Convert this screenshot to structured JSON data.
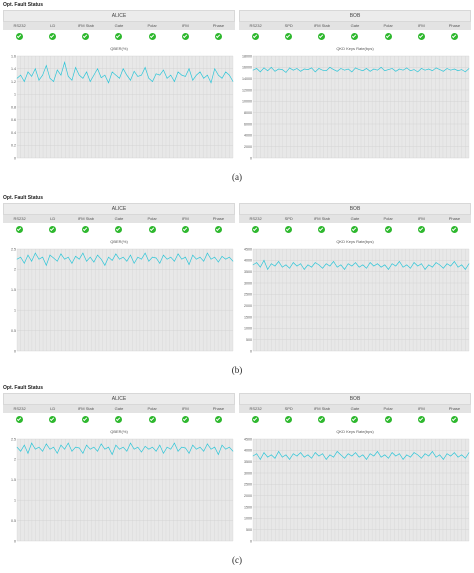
{
  "colors": {
    "series": "#2fc6d8",
    "ok": "#2eb82e",
    "grid_bg": "#e8e8e8"
  },
  "status_icon": "check-circle-icon",
  "panels": [
    {
      "title": "Opt. Fault Status",
      "label": "(a)",
      "alice": {
        "title": "ALICE",
        "columns": [
          "RS232",
          "LD",
          "IFM Stab",
          "Gate",
          "Polar",
          "IFM",
          "Phase"
        ]
      },
      "bob": {
        "title": "BOB",
        "columns": [
          "RS232",
          "SPD",
          "IFM Stab",
          "Gate",
          "Polar",
          "IFM",
          "Phase"
        ]
      }
    },
    {
      "title": "Opt. Fault Status",
      "label": "(b)",
      "alice": {
        "title": "ALICE",
        "columns": [
          "RS232",
          "LD",
          "IFM Stab",
          "Gate",
          "Polar",
          "IFM",
          "Phase"
        ]
      },
      "bob": {
        "title": "BOB",
        "columns": [
          "RS232",
          "SPD",
          "IFM Stab",
          "Gate",
          "Polar",
          "IFM",
          "Phase"
        ]
      }
    },
    {
      "title": "Opt. Fault Status",
      "label": "(c)",
      "alice": {
        "title": "ALICE",
        "columns": [
          "RS232",
          "LD",
          "IFM Stab",
          "Gate",
          "Polar",
          "IFM",
          "Phase"
        ]
      },
      "bob": {
        "title": "BOB",
        "columns": [
          "RS232",
          "SPD",
          "IFM Stab",
          "Gate",
          "Polar",
          "IFM",
          "Phase"
        ]
      }
    }
  ],
  "chart_data": [
    {
      "type": "line",
      "panel": "a",
      "title": "QBER(%)",
      "ylim": [
        0,
        1.6
      ],
      "yticks": [
        "1.6",
        "1.4",
        "1.2",
        "1",
        "0.8",
        "0.6",
        "0.4",
        "0.2",
        "0"
      ],
      "series": [
        {
          "values": [
            1.25,
            1.3,
            1.2,
            1.35,
            1.28,
            1.4,
            1.22,
            1.3,
            1.45,
            1.25,
            1.2,
            1.38,
            1.3,
            1.5,
            1.28,
            1.22,
            1.42,
            1.3,
            1.25,
            1.35,
            1.2,
            1.3,
            1.4,
            1.26,
            1.3,
            1.18,
            1.35,
            1.3,
            1.25,
            1.4,
            1.3,
            1.22,
            1.36,
            1.28,
            1.3,
            1.42,
            1.25,
            1.2,
            1.32,
            1.3,
            1.38,
            1.25,
            1.3,
            1.2,
            1.35,
            1.3,
            1.28,
            1.4,
            1.22,
            1.3,
            1.35,
            1.25,
            1.3,
            1.18,
            1.4,
            1.3,
            1.25,
            1.35,
            1.3,
            1.2
          ]
        }
      ]
    },
    {
      "type": "line",
      "panel": "a",
      "title": "QKD Keys Rate(bps)",
      "ylim": [
        0,
        18000
      ],
      "yticks": [
        "18000",
        "16000",
        "14000",
        "12000",
        "10000",
        "8000",
        "6000",
        "4000",
        "2000",
        "0"
      ],
      "series": [
        {
          "values": [
            15500,
            15800,
            15200,
            15900,
            15400,
            16000,
            15300,
            15700,
            15600,
            15100,
            15900,
            15500,
            15800,
            15300,
            15700,
            15600,
            15900,
            15200,
            15800,
            15500,
            15400,
            16000,
            15600,
            15300,
            15800,
            15500,
            15700,
            15200,
            15900,
            15600,
            15400,
            15800,
            15300,
            15700,
            15500,
            16000,
            15400,
            15600,
            15800,
            15300,
            15700,
            15500,
            15900,
            15400,
            15600,
            15200,
            15800,
            15500,
            15700,
            15400,
            15900,
            15600,
            15300,
            15800,
            15500,
            15700,
            15400,
            15600,
            15200,
            15800
          ]
        }
      ]
    },
    {
      "type": "line",
      "panel": "b",
      "title": "QBER(%)",
      "ylim": [
        0,
        2.5
      ],
      "yticks": [
        "2.5",
        "2",
        "1.5",
        "1",
        "0.5",
        "0"
      ],
      "series": [
        {
          "values": [
            2.25,
            2.3,
            2.15,
            2.35,
            2.2,
            2.4,
            2.25,
            2.3,
            2.1,
            2.35,
            2.28,
            2.2,
            2.38,
            2.25,
            2.3,
            2.15,
            2.32,
            2.25,
            2.4,
            2.2,
            2.3,
            2.18,
            2.35,
            2.25,
            2.1,
            2.3,
            2.22,
            2.38,
            2.25,
            2.3,
            2.2,
            2.35,
            2.15,
            2.3,
            2.25,
            2.4,
            2.2,
            2.3,
            2.28,
            2.15,
            2.35,
            2.25,
            2.3,
            2.2,
            2.38,
            2.25,
            2.3,
            2.12,
            2.35,
            2.25,
            2.3,
            2.2,
            2.4,
            2.25,
            2.3,
            2.18,
            2.32,
            2.25,
            2.3,
            2.2
          ]
        }
      ]
    },
    {
      "type": "line",
      "panel": "b",
      "title": "QKD Keys Rate(bps)",
      "ylim": [
        0,
        4500
      ],
      "yticks": [
        "4500",
        "4000",
        "3500",
        "3000",
        "2500",
        "2000",
        "1500",
        "1000",
        "500",
        "0"
      ],
      "series": [
        {
          "values": [
            3800,
            3900,
            3700,
            4000,
            3600,
            3850,
            3750,
            3950,
            3700,
            3800,
            3650,
            3900,
            3750,
            3850,
            3600,
            3800,
            3700,
            3900,
            3800,
            3650,
            3850,
            3750,
            3950,
            3700,
            3800,
            3600,
            3850,
            3750,
            3900,
            3700,
            3800,
            3650,
            3900,
            3750,
            3850,
            3700,
            3800,
            3600,
            3850,
            3750,
            3950,
            3700,
            3800,
            3650,
            3900,
            3750,
            3850,
            3600,
            3800,
            3700,
            3900,
            3800,
            3650,
            3850,
            3750,
            3950,
            3700,
            3800,
            3600,
            3850
          ]
        }
      ]
    },
    {
      "type": "line",
      "panel": "c",
      "title": "QBER(%)",
      "ylim": [
        0,
        2.5
      ],
      "yticks": [
        "2.5",
        "2",
        "1.5",
        "1",
        "0.5",
        "0"
      ],
      "series": [
        {
          "values": [
            2.3,
            2.2,
            2.35,
            2.15,
            2.4,
            2.25,
            2.3,
            2.2,
            2.38,
            2.25,
            2.3,
            2.15,
            2.35,
            2.25,
            2.4,
            2.2,
            2.3,
            2.28,
            2.15,
            2.35,
            2.25,
            2.3,
            2.2,
            2.38,
            2.25,
            2.3,
            2.12,
            2.35,
            2.25,
            2.3,
            2.2,
            2.4,
            2.25,
            2.3,
            2.18,
            2.32,
            2.25,
            2.3,
            2.2,
            2.35,
            2.15,
            2.3,
            2.25,
            2.4,
            2.2,
            2.3,
            2.28,
            2.15,
            2.35,
            2.25,
            2.3,
            2.2,
            2.38,
            2.25,
            2.3,
            2.12,
            2.35,
            2.25,
            2.3,
            2.2
          ]
        }
      ]
    },
    {
      "type": "line",
      "panel": "c",
      "title": "QKD Keys Rate(bps)",
      "ylim": [
        0,
        4500
      ],
      "yticks": [
        "4500",
        "4000",
        "3500",
        "3000",
        "2500",
        "2000",
        "1500",
        "1000",
        "500",
        "0"
      ],
      "series": [
        {
          "values": [
            3750,
            3850,
            3600,
            3900,
            3700,
            3800,
            3650,
            3950,
            3700,
            3800,
            3600,
            3850,
            3750,
            3900,
            3700,
            3800,
            3650,
            3900,
            3750,
            3850,
            3600,
            3800,
            3700,
            3950,
            3800,
            3650,
            3850,
            3750,
            3900,
            3700,
            3800,
            3600,
            3850,
            3750,
            3950,
            3700,
            3800,
            3650,
            3900,
            3750,
            3850,
            3600,
            3800,
            3700,
            3900,
            3800,
            3650,
            3850,
            3750,
            3950,
            3700,
            3800,
            3600,
            3850,
            3750,
            3900,
            3700,
            3800,
            3650,
            3900
          ]
        }
      ]
    }
  ]
}
